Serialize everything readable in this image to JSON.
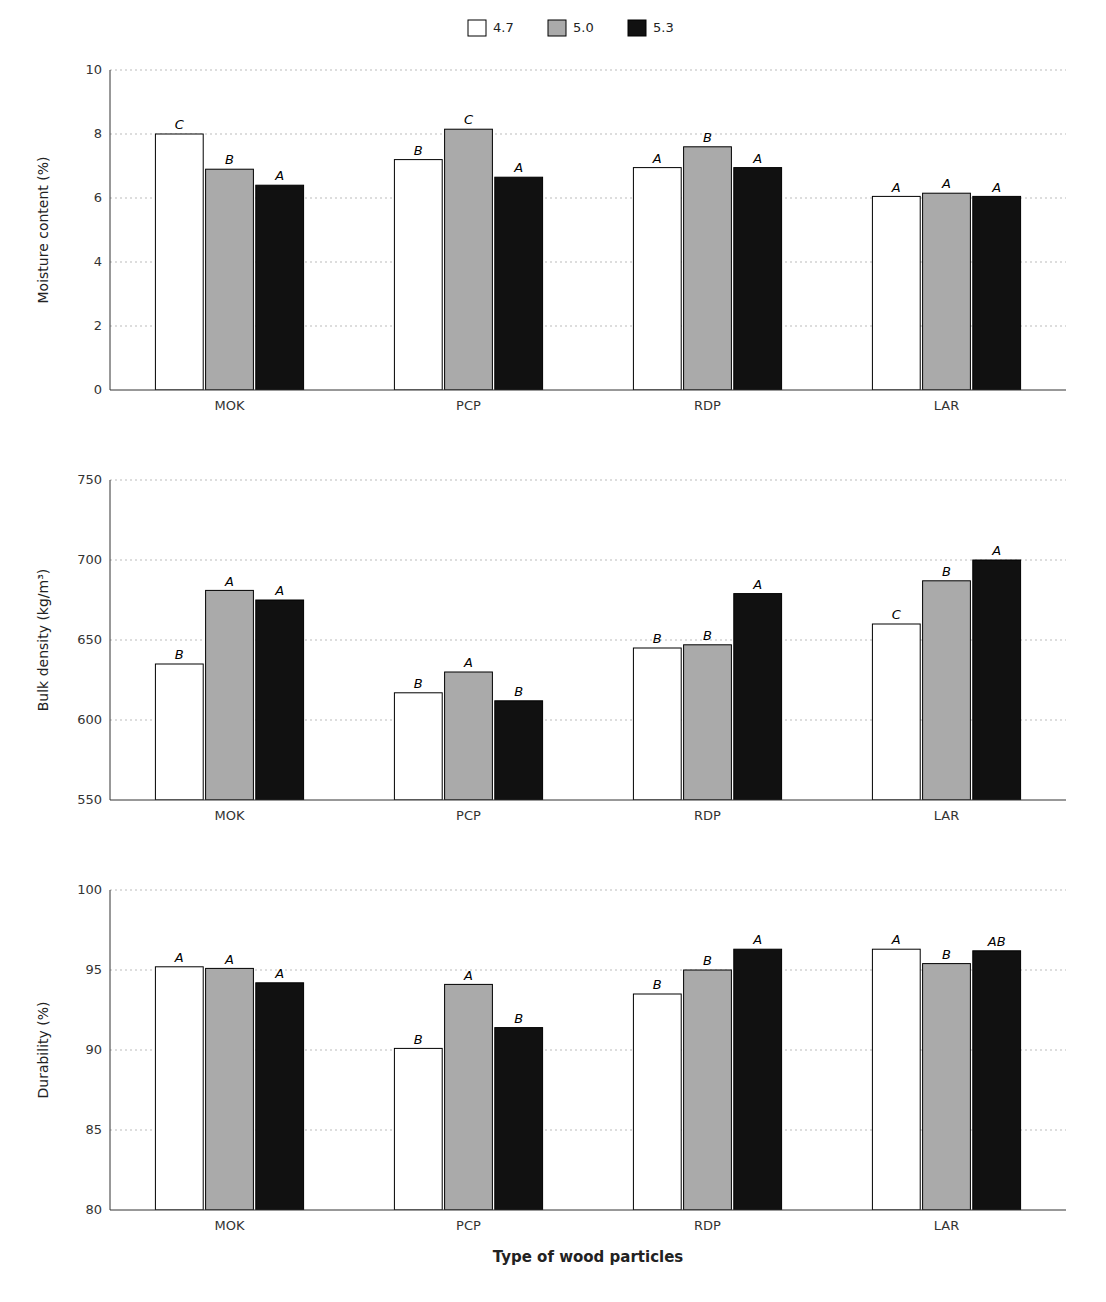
{
  "chart_data": [
    {
      "type": "bar",
      "ylabel": "Moisture content (%)",
      "categories": [
        "MOK",
        "PCP",
        "RDP",
        "LAR"
      ],
      "series": [
        {
          "name": "4.7",
          "color": "white",
          "values": [
            8.0,
            7.2,
            6.95,
            6.05
          ],
          "annotations": [
            "C",
            "B",
            "A",
            "A"
          ]
        },
        {
          "name": "5.0",
          "color": "#aaaaaa",
          "values": [
            6.9,
            8.15,
            7.6,
            6.15
          ],
          "annotations": [
            "B",
            "C",
            "B",
            "A"
          ]
        },
        {
          "name": "5.3",
          "color": "#111111",
          "values": [
            6.4,
            6.65,
            6.95,
            6.05
          ],
          "annotations": [
            "A",
            "A",
            "A",
            "A"
          ]
        }
      ],
      "ylim": [
        0,
        10
      ],
      "yticks": [
        0,
        2,
        4,
        6,
        8,
        10
      ],
      "grid": true,
      "legend": "top"
    },
    {
      "type": "bar",
      "ylabel": "Bulk density (kg/m³)",
      "categories": [
        "MOK",
        "PCP",
        "RDP",
        "LAR"
      ],
      "series": [
        {
          "name": "4.7",
          "color": "white",
          "values": [
            635,
            617,
            645,
            660
          ],
          "annotations": [
            "B",
            "B",
            "B",
            "C"
          ]
        },
        {
          "name": "5.0",
          "color": "#aaaaaa",
          "values": [
            681,
            630,
            647,
            687
          ],
          "annotations": [
            "A",
            "A",
            "B",
            "B"
          ]
        },
        {
          "name": "5.3",
          "color": "#111111",
          "values": [
            675,
            612,
            679,
            700
          ],
          "annotations": [
            "A",
            "B",
            "A",
            "A"
          ]
        }
      ],
      "ylim": [
        550,
        750
      ],
      "yticks": [
        550,
        600,
        650,
        700,
        750
      ],
      "grid": true,
      "legend": false
    },
    {
      "type": "bar",
      "ylabel": "Durability (%)",
      "xlabel": "Type of wood particles",
      "categories": [
        "MOK",
        "PCP",
        "RDP",
        "LAR"
      ],
      "series": [
        {
          "name": "4.7",
          "color": "white",
          "values": [
            95.2,
            90.1,
            93.5,
            96.3
          ],
          "annotations": [
            "A",
            "B",
            "B",
            "A"
          ]
        },
        {
          "name": "5.0",
          "color": "#aaaaaa",
          "values": [
            95.1,
            94.1,
            95.0,
            95.4
          ],
          "annotations": [
            "A",
            "A",
            "B",
            "B"
          ]
        },
        {
          "name": "5.3",
          "color": "#111111",
          "values": [
            94.2,
            91.4,
            96.3,
            96.2
          ],
          "annotations": [
            "A",
            "B",
            "A",
            "AB"
          ]
        }
      ],
      "ylim": [
        80,
        100
      ],
      "yticks": [
        80,
        85,
        90,
        95,
        100
      ],
      "grid": true,
      "legend": false
    }
  ]
}
